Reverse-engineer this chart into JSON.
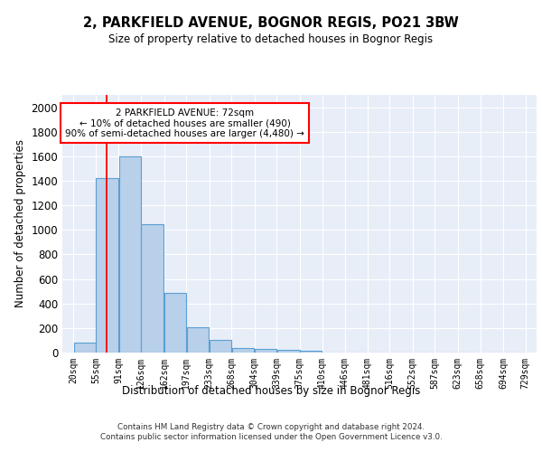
{
  "title": "2, PARKFIELD AVENUE, BOGNOR REGIS, PO21 3BW",
  "subtitle": "Size of property relative to detached houses in Bognor Regis",
  "xlabel": "Distribution of detached houses by size in Bognor Regis",
  "ylabel": "Number of detached properties",
  "bar_values": [
    80,
    1420,
    1600,
    1050,
    490,
    205,
    105,
    40,
    30,
    20,
    15,
    0,
    0,
    0,
    0,
    0,
    0,
    0,
    0,
    0
  ],
  "bin_labels": [
    "20sqm",
    "55sqm",
    "91sqm",
    "126sqm",
    "162sqm",
    "197sqm",
    "233sqm",
    "268sqm",
    "304sqm",
    "339sqm",
    "375sqm",
    "410sqm",
    "446sqm",
    "481sqm",
    "516sqm",
    "552sqm",
    "587sqm",
    "623sqm",
    "658sqm",
    "694sqm",
    "729sqm"
  ],
  "bar_color": "#b8d0ea",
  "bar_edge_color": "#5a9fd4",
  "bg_color": "#e8eef8",
  "grid_color": "#ffffff",
  "property_line_x": 72,
  "property_line_color": "red",
  "annotation_text": "2 PARKFIELD AVENUE: 72sqm\n← 10% of detached houses are smaller (490)\n90% of semi-detached houses are larger (4,480) →",
  "annotation_box_color": "white",
  "annotation_box_edge_color": "red",
  "footer_text": "Contains HM Land Registry data © Crown copyright and database right 2024.\nContains public sector information licensed under the Open Government Licence v3.0.",
  "ylim": [
    0,
    2100
  ],
  "bin_edges": [
    20,
    55,
    91,
    126,
    162,
    197,
    233,
    268,
    304,
    339,
    375,
    410,
    446,
    481,
    516,
    552,
    587,
    623,
    658,
    694,
    729
  ]
}
